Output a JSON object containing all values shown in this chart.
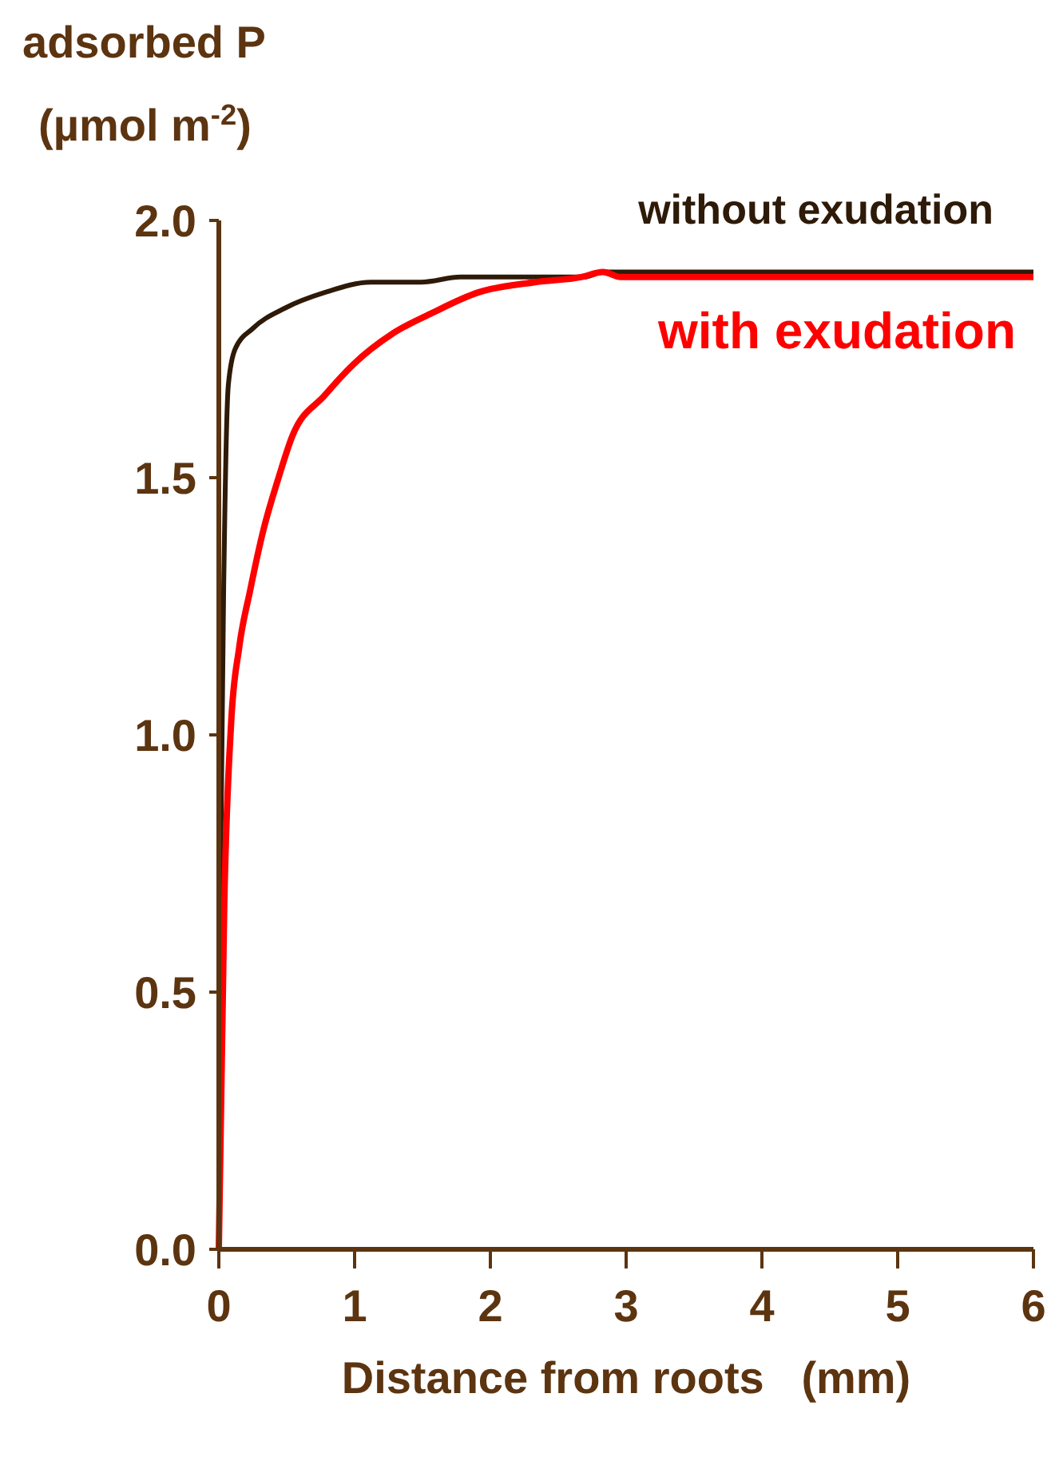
{
  "chart_data": {
    "type": "line",
    "ylabel": "adsorbed P\n(µmol m$^{-2}$)",
    "xlabel": "Distance from roots   (mm)",
    "xlim": [
      0,
      6
    ],
    "xticks": [
      0,
      1,
      2,
      3,
      4,
      5,
      6
    ],
    "ylim": [
      0,
      2
    ],
    "yticks": [
      {
        "value": 0,
        "label": "0.0"
      },
      {
        "value": 0.5,
        "label": "0.5"
      },
      {
        "value": 1,
        "label": "1.0"
      },
      {
        "value": 1.5,
        "label": "1.5"
      },
      {
        "value": 2,
        "label": "2.0"
      }
    ],
    "grid": false,
    "marker": "none",
    "line_style": "solid",
    "series": [
      {
        "name": "without exudation",
        "color": "#2e1a08",
        "x": [
          0,
          0.016,
          0.04,
          0.07,
          0.12,
          0.25,
          0.49,
          0.78,
          1.12,
          1.49,
          1.78,
          2.69,
          2.83,
          6
        ],
        "values": [
          0,
          0.81,
          1.36,
          1.68,
          1.75,
          1.79,
          1.83,
          1.86,
          1.88,
          1.88,
          1.89,
          1.89,
          1.9,
          1.9
        ]
      },
      {
        "name": "with exudation",
        "color": "#ff0000",
        "x": [
          0,
          0.04,
          0.09,
          0.15,
          0.23,
          0.33,
          0.44,
          0.54,
          0.78,
          0.99,
          1.28,
          1.57,
          1.91,
          2.33,
          2.67,
          2.83,
          2.96,
          6
        ],
        "values": [
          0,
          0.67,
          1.02,
          1.17,
          1.28,
          1.4,
          1.5,
          1.58,
          1.66,
          1.72,
          1.78,
          1.82,
          1.86,
          1.88,
          1.89,
          1.9,
          1.89,
          1.89
        ]
      }
    ]
  }
}
